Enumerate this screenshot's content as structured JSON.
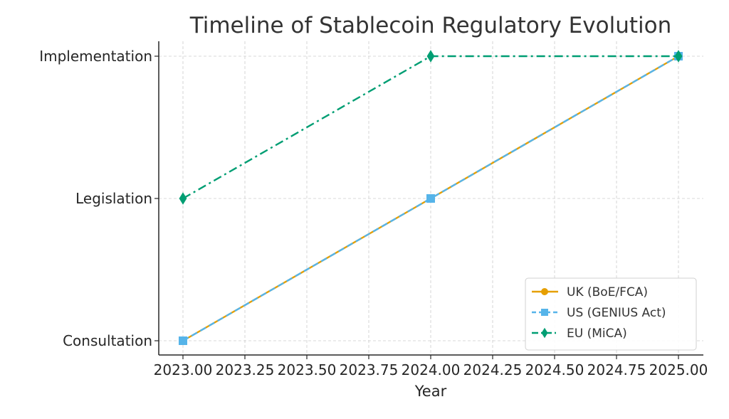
{
  "chart_data": {
    "type": "line",
    "title": "Timeline of Stablecoin Regulatory Evolution",
    "xlabel": "Year",
    "ylabel": "",
    "x": [
      2023,
      2024,
      2025
    ],
    "xlim": [
      2022.9,
      2025.1
    ],
    "x_ticks": [
      2023.0,
      2023.25,
      2023.5,
      2023.75,
      2024.0,
      2024.25,
      2024.5,
      2024.75,
      2025.0
    ],
    "x_tick_labels": [
      "2023.00",
      "2023.25",
      "2023.50",
      "2023.75",
      "2024.00",
      "2024.25",
      "2024.50",
      "2024.75",
      "2025.00"
    ],
    "y_categories": [
      "Consultation",
      "Legislation",
      "Implementation"
    ],
    "series": [
      {
        "name": "UK (BoE/FCA)",
        "values": [
          "Consultation",
          "Legislation",
          "Implementation"
        ],
        "color": "#E69F00",
        "line_style": "solid",
        "marker": "circle"
      },
      {
        "name": "US (GENIUS Act)",
        "values": [
          "Consultation",
          "Legislation",
          "Implementation"
        ],
        "color": "#56B4E9",
        "line_style": "dashed",
        "marker": "square"
      },
      {
        "name": "EU (MiCA)",
        "values": [
          "Legislation",
          "Implementation",
          "Implementation"
        ],
        "color": "#009E73",
        "line_style": "dashdot",
        "marker": "diamond"
      }
    ],
    "grid": true,
    "legend_position": "lower-right"
  }
}
